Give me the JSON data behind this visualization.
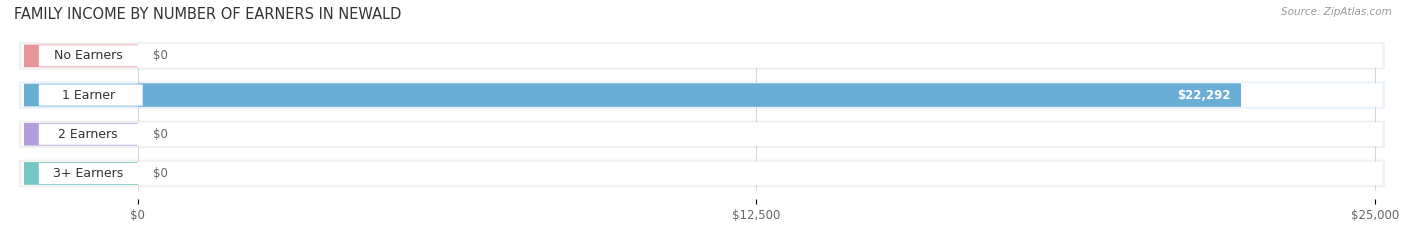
{
  "title": "FAMILY INCOME BY NUMBER OF EARNERS IN NEWALD",
  "source_text": "Source: ZipAtlas.com",
  "categories": [
    "No Earners",
    "1 Earner",
    "2 Earners",
    "3+ Earners"
  ],
  "values": [
    0,
    22292,
    0,
    0
  ],
  "max_value": 25000,
  "bar_colors": [
    "#e8959a",
    "#6aaed6",
    "#b39ddb",
    "#74c7c4"
  ],
  "value_labels": [
    "$0",
    "$22,292",
    "$0",
    "$0"
  ],
  "x_ticks": [
    0,
    12500,
    25000
  ],
  "x_tick_labels": [
    "$0",
    "$12,500",
    "$25,000"
  ],
  "title_fontsize": 10.5,
  "label_fontsize": 9,
  "value_fontsize": 8.5,
  "background_color": "#ffffff",
  "bar_height": 0.62,
  "row_bg_light": "#f5f5f5",
  "row_bg_blue": "#eaf2fa",
  "row_bg_colors": [
    "#f0f0f0",
    "#eaf2fa",
    "#f0f0f0",
    "#f0f0f0"
  ],
  "pill_bg_color": "#e8e8e8",
  "label_box_color": "#ffffff",
  "gap_color": "#ffffff"
}
